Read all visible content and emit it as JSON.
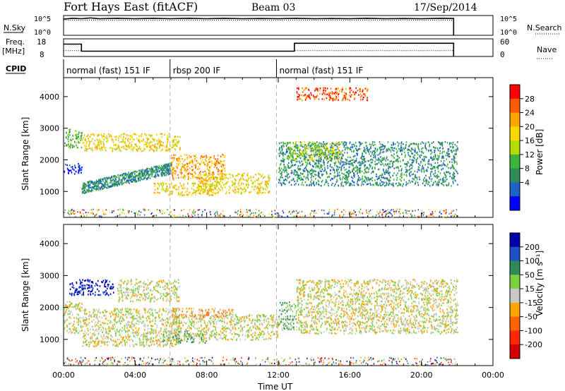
{
  "header": {
    "title": "Fort Hays East (fitACF)",
    "beam": "Beam 03",
    "date": "17/Sep/2014"
  },
  "params": {
    "nsky_label": "N.Sky",
    "nsearch_label": "N.Search",
    "freq_label": "Freq.",
    "freq_unit": "[MHz]",
    "nave_label": "Nave",
    "cpid_label": "CPID",
    "nsky_ticks": [
      "10^5",
      "10^0"
    ],
    "nsearch_ticks": [
      "10^5",
      "10^0"
    ],
    "freq_ticks": [
      "18",
      "8"
    ],
    "nave_ticks": [
      "60",
      "0"
    ],
    "nsky_trace": [
      [
        0.0,
        4.1
      ],
      [
        0.5,
        4.3
      ],
      [
        1.0,
        4.2
      ],
      [
        1.5,
        4.4
      ],
      [
        2.0,
        4.2
      ],
      [
        3.0,
        4.3
      ],
      [
        4.0,
        4.2
      ],
      [
        5.0,
        4.3
      ],
      [
        6.0,
        4.2
      ],
      [
        7.0,
        4.3
      ],
      [
        8.0,
        4.2
      ],
      [
        9.0,
        4.3
      ],
      [
        10.0,
        4.2
      ],
      [
        11.0,
        4.25
      ],
      [
        12.0,
        4.2
      ],
      [
        13.0,
        4.3
      ],
      [
        14.0,
        4.2
      ],
      [
        15.0,
        4.25
      ],
      [
        16.0,
        4.2
      ],
      [
        17.0,
        4.3
      ],
      [
        18.0,
        4.2
      ],
      [
        19.0,
        4.25
      ],
      [
        20.0,
        4.2
      ],
      [
        21.0,
        4.3
      ],
      [
        21.8,
        4.25
      ],
      [
        21.8,
        0.0
      ]
    ],
    "nsearch_trace": [
      [
        0.0,
        3.9
      ],
      [
        1.0,
        3.8
      ],
      [
        2.0,
        3.85
      ],
      [
        3.0,
        3.8
      ],
      [
        4.0,
        3.85
      ],
      [
        5.0,
        3.8
      ],
      [
        6.0,
        3.8
      ],
      [
        7.0,
        3.85
      ],
      [
        8.0,
        3.8
      ],
      [
        9.0,
        3.85
      ],
      [
        10.0,
        3.8
      ],
      [
        11.0,
        3.85
      ],
      [
        12.0,
        3.8
      ],
      [
        13.0,
        3.85
      ],
      [
        14.0,
        3.8
      ],
      [
        15.0,
        3.85
      ],
      [
        16.0,
        3.8
      ],
      [
        17.0,
        3.85
      ],
      [
        18.0,
        3.8
      ],
      [
        19.0,
        3.85
      ],
      [
        20.0,
        3.8
      ],
      [
        21.0,
        3.85
      ],
      [
        21.8,
        3.8
      ]
    ],
    "freq_trace": [
      [
        0.0,
        15
      ],
      [
        1.0,
        15
      ],
      [
        1.0,
        11
      ],
      [
        12.9,
        11
      ],
      [
        12.9,
        15.5
      ],
      [
        21.8,
        15.5
      ],
      [
        21.8,
        8
      ]
    ],
    "nave_trace": [
      [
        0.0,
        20
      ],
      [
        1.0,
        20
      ],
      [
        1.0,
        18
      ],
      [
        12.9,
        18
      ],
      [
        12.9,
        20
      ],
      [
        21.8,
        20
      ]
    ]
  },
  "cpid": [
    {
      "label": "normal (fast) 151 IF",
      "start": 0.0,
      "end": 5.95
    },
    {
      "label": "rbsp 200 IF",
      "start": 5.95,
      "end": 11.9
    },
    {
      "label": "normal (fast) 151 IF",
      "start": 11.9,
      "end": 22.0
    }
  ],
  "chart_data": [
    {
      "type": "heatmap",
      "name": "power",
      "xlabel": "",
      "ylabel": "Slant Range [km]",
      "xlim": [
        0,
        24
      ],
      "ylim": [
        180,
        4600
      ],
      "yticks": [
        1000,
        2000,
        3000,
        4000
      ],
      "xticks": [
        0,
        4,
        8,
        12,
        16,
        20,
        24
      ],
      "colorbar": {
        "label": "Power [dB]",
        "ticks": [
          "28",
          "24",
          "20",
          "16",
          "12",
          "8",
          "4"
        ],
        "colors": [
          "#ff0000",
          "#ff5a00",
          "#ffa500",
          "#ffd700",
          "#b4dc00",
          "#3cb43c",
          "#2e8b57",
          "#1e64c8",
          "#0000ff"
        ]
      },
      "features": [
        {
          "t0": 0.0,
          "t1": 1.0,
          "r0": 1550,
          "r1": 1900,
          "level": 8
        },
        {
          "t0": 0.0,
          "t1": 1.0,
          "r0": 2400,
          "r1": 3000,
          "level": 5
        },
        {
          "t0": 1.0,
          "t1": 6.0,
          "r0": 950,
          "r1": 2000,
          "level": 6,
          "band": "rising"
        },
        {
          "t0": 1.0,
          "t1": 6.5,
          "r0": 2300,
          "r1": 2850,
          "level": 3
        },
        {
          "t0": 6.0,
          "t1": 9.0,
          "r0": 1400,
          "r1": 2200,
          "level": 2
        },
        {
          "t0": 7.5,
          "t1": 11.5,
          "r0": 950,
          "r1": 1600,
          "level": 3
        },
        {
          "t0": 5.0,
          "t1": 8.5,
          "r0": 900,
          "r1": 1300,
          "level": 3
        },
        {
          "t0": 12.0,
          "t1": 22.0,
          "r0": 1200,
          "r1": 2600,
          "level": 6
        },
        {
          "t0": 12.5,
          "t1": 15.5,
          "r0": 2000,
          "r1": 2600,
          "level": 4
        },
        {
          "t0": 13.0,
          "t1": 17.0,
          "r0": 3900,
          "r1": 4300,
          "level": 1
        }
      ]
    },
    {
      "type": "heatmap",
      "name": "velocity",
      "xlabel": "Time UT",
      "ylabel": "Slant Range [km]",
      "xlim": [
        0,
        24
      ],
      "ylim": [
        180,
        4600
      ],
      "yticks": [
        1000,
        2000,
        3000,
        4000
      ],
      "xticks": [
        0,
        4,
        8,
        12,
        16,
        20,
        24
      ],
      "xticklabels": [
        "00:00",
        "04:00",
        "08:00",
        "12:00",
        "16:00",
        "20:00",
        "00:00"
      ],
      "colorbar": {
        "label": "Velocity [m s⁻¹]",
        "ticks": [
          "200",
          "100",
          "50",
          "15",
          "-15",
          "-50",
          "-100",
          "-200"
        ],
        "colors": [
          "#0000aa",
          "#1e50c8",
          "#2e8b57",
          "#7cd040",
          "#c8c8c8",
          "#ffa500",
          "#ff6400",
          "#ff2800",
          "#d00000"
        ]
      },
      "features": [
        {
          "t0": 0.0,
          "t1": 1.0,
          "r0": 1200,
          "r1": 2200,
          "level": 4
        },
        {
          "t0": 0.3,
          "t1": 2.8,
          "r0": 2400,
          "r1": 2900,
          "level": 0
        },
        {
          "t0": 1.0,
          "t1": 6.5,
          "r0": 800,
          "r1": 2000,
          "level": 4
        },
        {
          "t0": 3.0,
          "t1": 6.5,
          "r0": 2200,
          "r1": 2900,
          "level": 4
        },
        {
          "t0": 6.0,
          "t1": 12.0,
          "r0": 1000,
          "r1": 1800,
          "level": 4
        },
        {
          "t0": 5.5,
          "t1": 8.0,
          "r0": 900,
          "r1": 1300,
          "level": 3
        },
        {
          "t0": 6.0,
          "t1": 9.5,
          "r0": 1700,
          "r1": 2000,
          "level": 5
        },
        {
          "t0": 12.0,
          "t1": 13.0,
          "r0": 1300,
          "r1": 2200,
          "level": 3
        },
        {
          "t0": 13.0,
          "t1": 22.0,
          "r0": 1200,
          "r1": 2900,
          "level": 4
        }
      ]
    }
  ]
}
